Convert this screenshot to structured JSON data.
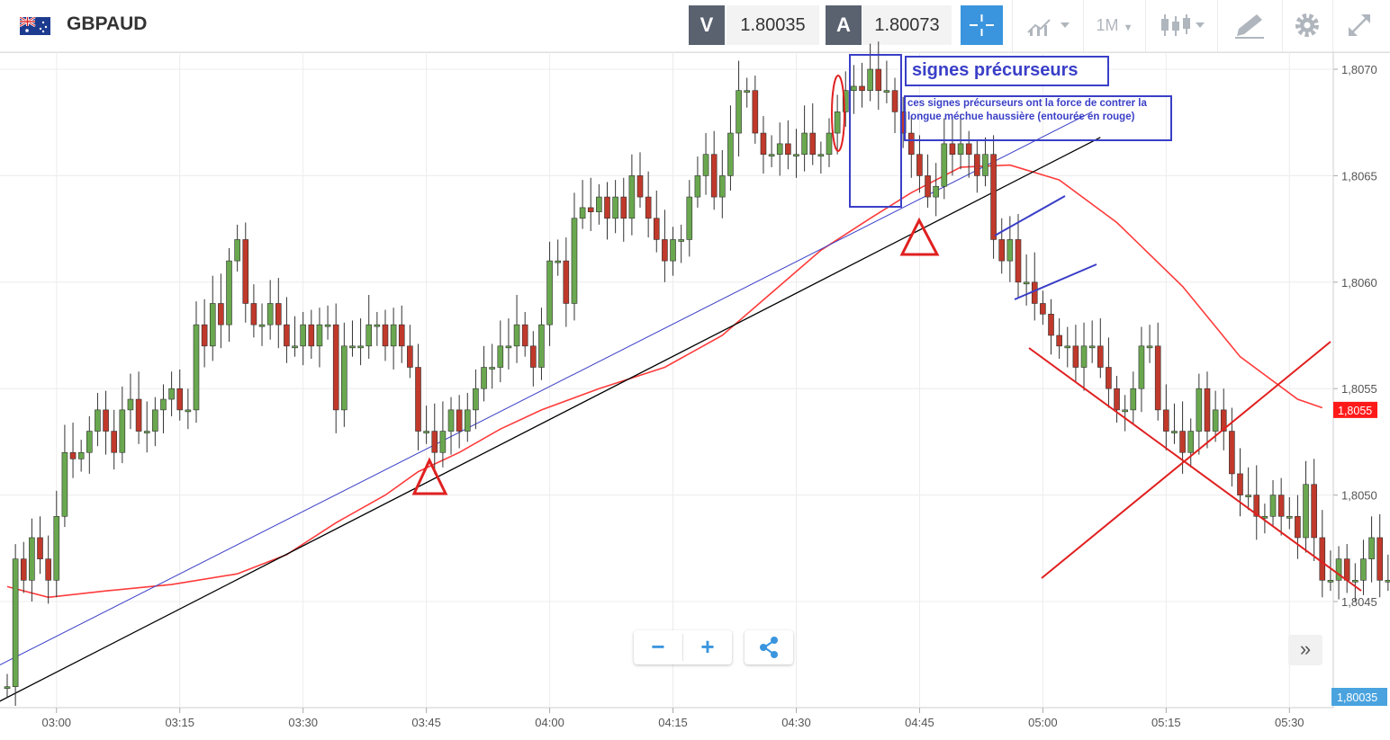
{
  "header": {
    "symbol": "GBPAUD",
    "sell_label": "V",
    "sell_price": "1.80035",
    "buy_label": "A",
    "buy_price": "1.80073",
    "timeframe": "1M"
  },
  "colors": {
    "bull": "#6aa84f",
    "bear": "#c0392b",
    "ma_line": "#ff3b3b",
    "accent": "#3a95de",
    "annotation_blue": "#3a3fc7"
  },
  "chart_data": {
    "type": "candlestick",
    "title": "",
    "xlabel": "",
    "ylabel": "",
    "ylim": [
      1.80405,
      1.80715
    ],
    "x_ticks": [
      "03:00",
      "03:15",
      "03:30",
      "03:45",
      "04:00",
      "04:15",
      "04:30",
      "04:45",
      "05:00",
      "05:15",
      "05:30"
    ],
    "y_ticks": [
      "1,8070",
      "1,8065",
      "1,8060",
      "1,8055",
      "1,8050",
      "1,8045"
    ],
    "current_price_label": "1,8055",
    "bid_label": "1,80035",
    "start_close": 1.8041,
    "closes": [
      1.8041,
      1.8047,
      1.8046,
      1.8048,
      1.8047,
      1.8046,
      1.8049,
      1.8052,
      1.80517,
      1.8052,
      1.8053,
      1.8054,
      1.8053,
      1.8052,
      1.8054,
      1.80545,
      1.8053,
      1.8053,
      1.8054,
      1.80545,
      1.8055,
      1.8054,
      1.8054,
      1.8058,
      1.8057,
      1.8059,
      1.8058,
      1.8061,
      1.8062,
      1.8059,
      1.8058,
      1.8058,
      1.8059,
      1.8058,
      1.8057,
      1.8057,
      1.8058,
      1.8057,
      1.8058,
      1.8058,
      1.8054,
      1.8057,
      1.8057,
      1.8057,
      1.8058,
      1.8058,
      1.8057,
      1.8058,
      1.8057,
      1.8056,
      1.8053,
      1.8053,
      1.8052,
      1.8053,
      1.8054,
      1.8053,
      1.8054,
      1.8055,
      1.8056,
      1.8056,
      1.8057,
      1.8057,
      1.8058,
      1.8057,
      1.8056,
      1.8058,
      1.8061,
      1.8061,
      1.8059,
      1.8063,
      1.80635,
      1.80633,
      1.8064,
      1.8063,
      1.8064,
      1.8063,
      1.8065,
      1.8064,
      1.8063,
      1.8062,
      1.8061,
      1.8062,
      1.8062,
      1.8064,
      1.8065,
      1.8066,
      1.8064,
      1.8065,
      1.8067,
      1.8069,
      1.8069,
      1.8067,
      1.8066,
      1.8066,
      1.80665,
      1.8066,
      1.8066,
      1.8067,
      1.8066,
      1.8066,
      1.8067,
      1.8068,
      1.8069,
      1.80692,
      1.8069,
      1.807,
      1.8069,
      1.8069,
      1.8068,
      1.8067,
      1.8066,
      1.8065,
      1.8064,
      1.80645,
      1.80665,
      1.8066,
      1.80665,
      1.8066,
      1.8065,
      1.8066,
      1.8062,
      1.8061,
      1.8062,
      1.806,
      1.806,
      1.8059,
      1.80585,
      1.80575,
      1.8057,
      1.8057,
      1.8056,
      1.8057,
      1.8057,
      1.8056,
      1.8055,
      1.8054,
      1.8054,
      1.8055,
      1.8057,
      1.8057,
      1.8054,
      1.8053,
      1.8053,
      1.8052,
      1.8053,
      1.8055,
      1.8053,
      1.8054,
      1.8053,
      1.8051,
      1.805,
      1.805,
      1.8049,
      1.8049,
      1.805,
      1.8049,
      1.8049,
      1.8048,
      1.80505,
      1.8048,
      1.8046,
      1.8046,
      1.8047,
      1.8046,
      1.8046,
      1.8047,
      1.8048,
      1.8046,
      1.8046,
      1.8048,
      1.8045
    ],
    "moving_average": [
      {
        "t": 0,
        "v": 1.80457
      },
      {
        "t": 5,
        "v": 1.80452
      },
      {
        "t": 12,
        "v": 1.80455
      },
      {
        "t": 20,
        "v": 1.80458
      },
      {
        "t": 28,
        "v": 1.80463
      },
      {
        "t": 34,
        "v": 1.80472
      },
      {
        "t": 40,
        "v": 1.80487
      },
      {
        "t": 46,
        "v": 1.805
      },
      {
        "t": 50,
        "v": 1.80511
      },
      {
        "t": 55,
        "v": 1.8052
      },
      {
        "t": 60,
        "v": 1.80531
      },
      {
        "t": 65,
        "v": 1.8054
      },
      {
        "t": 72,
        "v": 1.8055
      },
      {
        "t": 80,
        "v": 1.8056
      },
      {
        "t": 87,
        "v": 1.80575
      },
      {
        "t": 93,
        "v": 1.80595
      },
      {
        "t": 99,
        "v": 1.80615
      },
      {
        "t": 105,
        "v": 1.8063
      },
      {
        "t": 110,
        "v": 1.80642
      },
      {
        "t": 116,
        "v": 1.80654
      },
      {
        "t": 122,
        "v": 1.80655
      },
      {
        "t": 128,
        "v": 1.80648
      },
      {
        "t": 135,
        "v": 1.80628
      },
      {
        "t": 143,
        "v": 1.80598
      },
      {
        "t": 150,
        "v": 1.80565
      },
      {
        "t": 157,
        "v": 1.80545
      },
      {
        "t": 160,
        "v": 1.80541
      }
    ],
    "trendlines": [
      {
        "kind": "support",
        "color": "#000000",
        "from": {
          "t": -1,
          "v": 1.80403
        },
        "to": {
          "t": 133,
          "v": 1.80668
        }
      },
      {
        "kind": "support",
        "color": "#3a3fc7",
        "from": {
          "t": -1,
          "v": 1.8042
        },
        "to": {
          "t": 132,
          "v": 1.8068
        }
      }
    ],
    "annotations": {
      "title": "signes précurseurs",
      "note": "ces signes précurseurs ont la force de contrer la longue méchue haussière (entourée en rouge)"
    }
  }
}
